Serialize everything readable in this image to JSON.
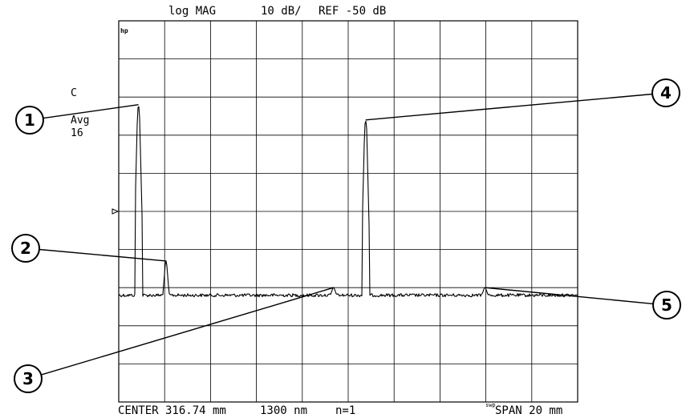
{
  "header": {
    "format": "log MAG",
    "scale": "10 dB/",
    "reference": "REF -50 dB"
  },
  "channel": {
    "logo": "hp",
    "indicator": "C",
    "averaging_label": "Avg",
    "averaging_count": "16"
  },
  "footer": {
    "center": "CENTER 316.74 mm",
    "wavelength": "1300 nm",
    "index": "n=1",
    "span": "SPAN 20 mm"
  },
  "callouts": [
    "1",
    "2",
    "3",
    "4",
    "5"
  ],
  "chart_data": {
    "type": "line",
    "x_range_mm": [
      306.74,
      326.74
    ],
    "y_range_dB": [
      -150,
      -50
    ],
    "x_divisions": 10,
    "y_divisions": 10,
    "grid": true,
    "noise_floor_dB": -122,
    "peaks": [
      {
        "label": "1",
        "x_mm": 307.6,
        "peak_dB": -72
      },
      {
        "label": "2",
        "x_mm": 308.8,
        "peak_dB": -113
      },
      {
        "label": "3",
        "x_mm": 316.1,
        "peak_dB": -120
      },
      {
        "label": "4",
        "x_mm": 317.5,
        "peak_dB": -76
      },
      {
        "label": "5",
        "x_mm": 322.7,
        "peak_dB": -120
      }
    ]
  }
}
